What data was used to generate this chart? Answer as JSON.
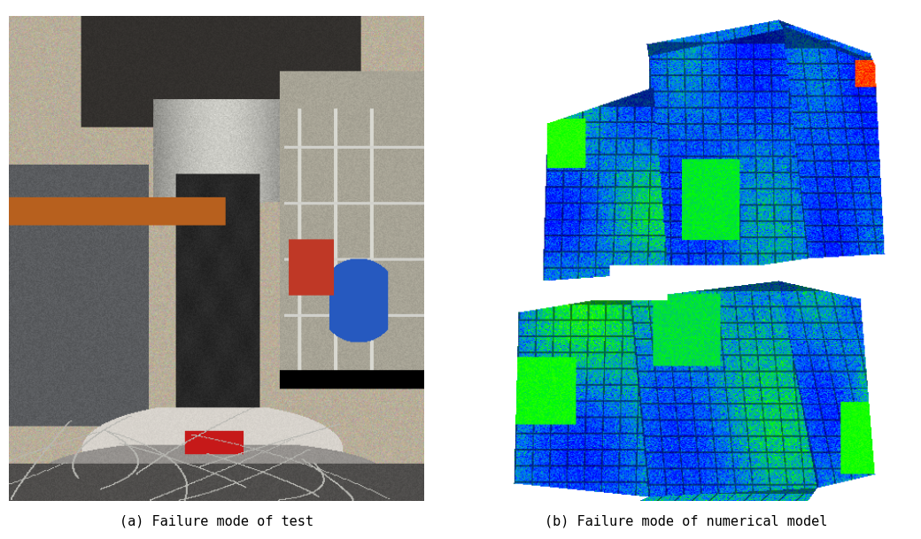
{
  "caption_a": "(a) Failure mode of test",
  "caption_b": "(b) Failure mode of numerical model",
  "caption_fontsize": 11,
  "caption_font": "monospace",
  "background_color": "#ffffff",
  "fig_width": 10.4,
  "fig_height": 6.09
}
